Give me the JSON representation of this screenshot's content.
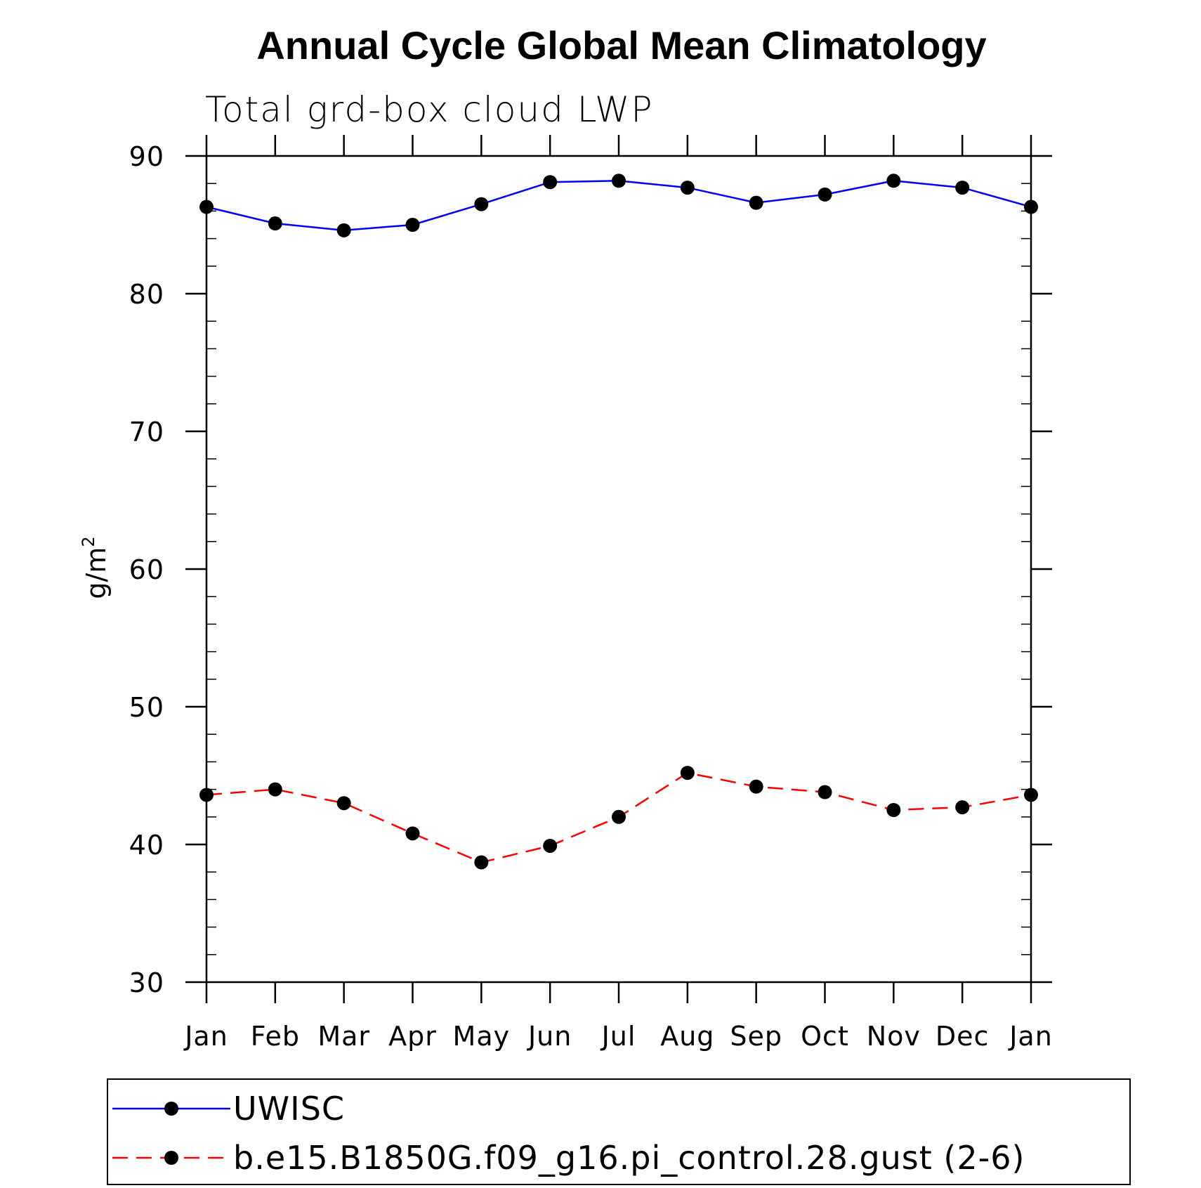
{
  "chart_data": {
    "type": "line",
    "title": "Annual Cycle Global Mean Climatology",
    "subtitle": "Total grd-box cloud LWP",
    "ylabel": "g/m",
    "ylabel_superscript": "2",
    "xlabel": "",
    "categories": [
      "Jan",
      "Feb",
      "Mar",
      "Apr",
      "May",
      "Jun",
      "Jul",
      "Aug",
      "Sep",
      "Oct",
      "Nov",
      "Dec",
      "Jan"
    ],
    "ylim": [
      30,
      90
    ],
    "yticks": [
      30,
      40,
      50,
      60,
      70,
      80,
      90
    ],
    "yticks_minor_step": 2,
    "grid": false,
    "legend_position": "bottom",
    "series": [
      {
        "name": "UWISC",
        "values": [
          86.3,
          85.1,
          84.6,
          85.0,
          86.5,
          88.1,
          88.2,
          87.7,
          86.6,
          87.2,
          88.2,
          87.7,
          86.3
        ],
        "color": "#0000ff",
        "dash": "solid",
        "marker": "filled-circle"
      },
      {
        "name": "b.e15.B1850G.f09_g16.pi_control.28.gust (2-6)",
        "values": [
          43.6,
          44.0,
          43.0,
          40.8,
          38.7,
          39.9,
          42.0,
          45.2,
          44.2,
          43.8,
          42.5,
          42.7,
          43.6
        ],
        "color": "#ff0000",
        "dash": "dashed",
        "marker": "filled-circle"
      }
    ]
  }
}
